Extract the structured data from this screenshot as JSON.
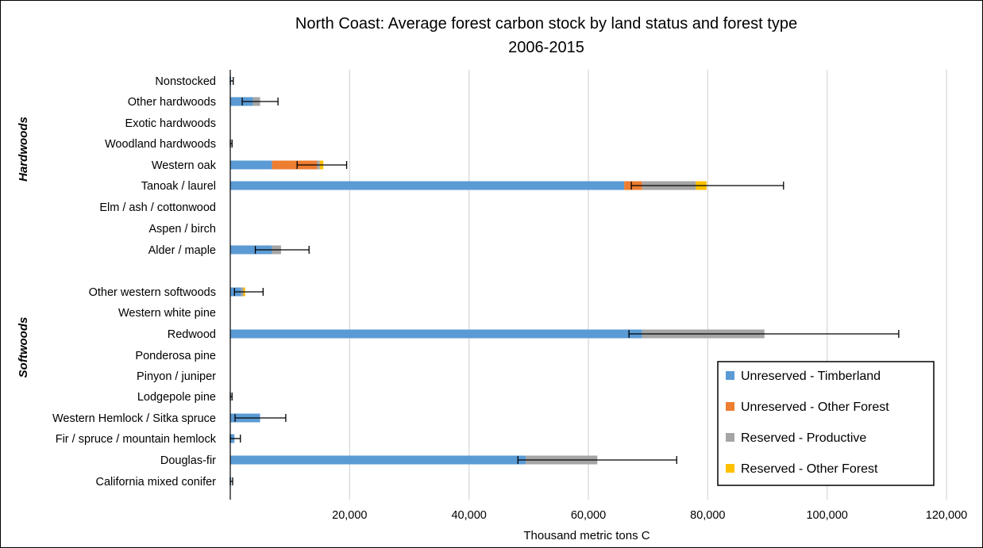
{
  "chart_data": {
    "type": "bar",
    "orientation": "horizontal",
    "stacked": true,
    "title": "North Coast: Average forest carbon stock by land status and forest type",
    "subtitle": "2006-2015",
    "xlabel": "Thousand metric tons C",
    "xlim": [
      0,
      120000
    ],
    "x_ticks": [
      "20,000",
      "40,000",
      "60,000",
      "80,000",
      "100,000",
      "120,000"
    ],
    "x_tick_values": [
      20000,
      40000,
      60000,
      80000,
      100000,
      120000
    ],
    "grid": "vertical",
    "legend_position": "bottom-right",
    "groups": [
      {
        "name": "Hardwoods",
        "categories": [
          "Nonstocked",
          "Other hardwoods",
          "Exotic hardwoods",
          "Woodland hardwoods",
          "Western oak",
          "Tanoak / laurel",
          "Elm / ash / cottonwood",
          "Aspen / birch",
          "Alder / maple"
        ]
      },
      {
        "name": "Softwoods",
        "categories": [
          "Other western softwoods",
          "Western white pine",
          "Redwood",
          "Ponderosa pine",
          "Pinyon / juniper",
          "Lodgepole pine",
          "Western Hemlock / Sitka spruce",
          "Fir / spruce / mountain hemlock",
          "Douglas-fir",
          "California mixed conifer"
        ]
      }
    ],
    "categories": [
      "Nonstocked",
      "Other hardwoods",
      "Exotic hardwoods",
      "Woodland hardwoods",
      "Western oak",
      "Tanoak / laurel",
      "Elm / ash / cottonwood",
      "Aspen / birch",
      "Alder / maple",
      "Other western softwoods",
      "Western white pine",
      "Redwood",
      "Ponderosa pine",
      "Pinyon / juniper",
      "Lodgepole pine",
      "Western Hemlock / Sitka spruce",
      "Fir / spruce / mountain hemlock",
      "Douglas-fir",
      "California mixed conifer"
    ],
    "series": [
      {
        "name": "Unreserved - Timberland",
        "color": "#5B9BD5",
        "values": [
          150,
          3800,
          0,
          100,
          7000,
          66000,
          0,
          0,
          7000,
          1800,
          0,
          69000,
          0,
          0,
          100,
          5000,
          700,
          49500,
          150
        ]
      },
      {
        "name": "Unreserved - Other Forest",
        "color": "#ED7D31",
        "values": [
          0,
          0,
          0,
          0,
          7500,
          3000,
          0,
          0,
          0,
          0,
          0,
          0,
          0,
          0,
          0,
          0,
          0,
          0,
          0
        ]
      },
      {
        "name": "Reserved - Productive",
        "color": "#A5A5A5",
        "values": [
          0,
          1200,
          0,
          0,
          500,
          9000,
          0,
          0,
          1500,
          400,
          0,
          20500,
          0,
          0,
          0,
          0,
          0,
          12000,
          0
        ]
      },
      {
        "name": "Reserved - Other Forest",
        "color": "#FFC000",
        "values": [
          0,
          0,
          0,
          0,
          600,
          1800,
          0,
          0,
          0,
          300,
          0,
          0,
          0,
          0,
          0,
          0,
          0,
          0,
          0
        ]
      }
    ],
    "error_bars": [
      [
        0,
        500
      ],
      [
        2000,
        8000
      ],
      null,
      [
        0,
        300
      ],
      [
        11200,
        19500
      ],
      [
        67200,
        92700
      ],
      null,
      null,
      [
        4200,
        13200
      ],
      [
        700,
        5500
      ],
      null,
      [
        66800,
        112000
      ],
      null,
      null,
      [
        0,
        300
      ],
      [
        800,
        9300
      ],
      [
        0,
        1700
      ],
      [
        48200,
        74800
      ],
      [
        0,
        400
      ]
    ]
  }
}
